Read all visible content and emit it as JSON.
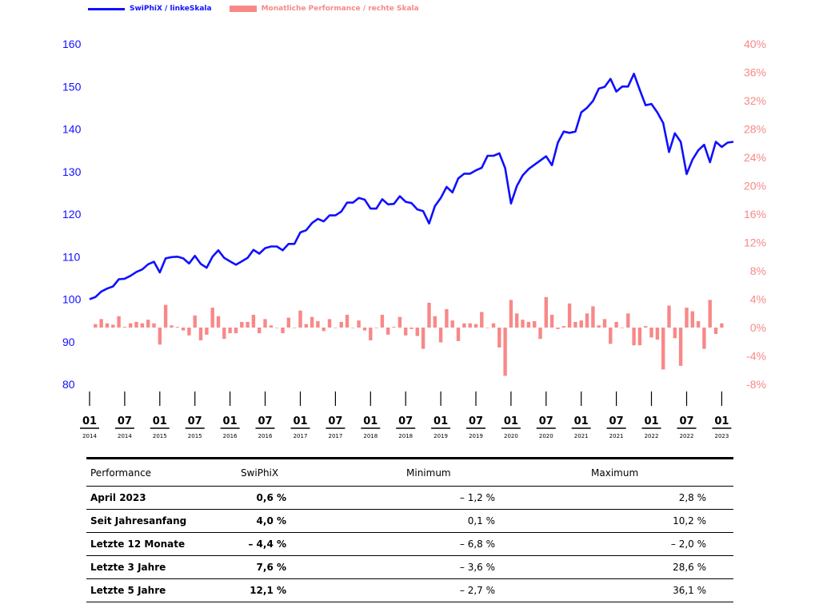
{
  "chart_data": {
    "type": "line+bar",
    "legend": [
      {
        "name": "SwiPhiX / linkeSkala",
        "color": "#1010ff"
      },
      {
        "name": "Monatliche Performance / rechte Skala",
        "color": "#f88888"
      }
    ],
    "left_axis": {
      "ticks": [
        80,
        90,
        100,
        110,
        120,
        130,
        140,
        150,
        160
      ],
      "ylim": [
        80,
        160
      ]
    },
    "right_axis": {
      "ticks": [
        "-8%",
        "-4%",
        "0%",
        "4%",
        "8%",
        "12%",
        "16%",
        "20%",
        "24%",
        "28%",
        "32%",
        "36%",
        "40%"
      ],
      "ylim": [
        -8,
        40
      ]
    },
    "x_ticks": [
      {
        "m": "01",
        "y": "2014"
      },
      {
        "m": "07",
        "y": "2014"
      },
      {
        "m": "01",
        "y": "2015"
      },
      {
        "m": "07",
        "y": "2015"
      },
      {
        "m": "01",
        "y": "2016"
      },
      {
        "m": "07",
        "y": "2016"
      },
      {
        "m": "01",
        "y": "2017"
      },
      {
        "m": "07",
        "y": "2017"
      },
      {
        "m": "01",
        "y": "2018"
      },
      {
        "m": "07",
        "y": "2018"
      },
      {
        "m": "01",
        "y": "2019"
      },
      {
        "m": "07",
        "y": "2019"
      },
      {
        "m": "01",
        "y": "2020"
      },
      {
        "m": "07",
        "y": "2020"
      },
      {
        "m": "01",
        "y": "2021"
      },
      {
        "m": "07",
        "y": "2021"
      },
      {
        "m": "01",
        "y": "2022"
      },
      {
        "m": "07",
        "y": "2022"
      },
      {
        "m": "01",
        "y": "2023"
      }
    ],
    "series": [
      {
        "name": "SwiPhiX / linkeSkala",
        "axis": "left",
        "values": [
          100.0,
          100.5,
          101.8,
          102.5,
          103.0,
          104.7,
          104.8,
          105.5,
          106.4,
          107.0,
          108.2,
          108.8,
          106.3,
          109.6,
          109.9,
          110.0,
          109.6,
          108.4,
          110.2,
          108.3,
          107.4,
          110.0,
          111.5,
          109.7,
          108.9,
          108.1,
          108.9,
          109.7,
          111.6,
          110.7,
          112.0,
          112.4,
          112.4,
          111.5,
          113.0,
          113.0,
          115.7,
          116.2,
          117.9,
          118.9,
          118.3,
          119.7,
          119.7,
          120.6,
          122.7,
          122.7,
          123.8,
          123.4,
          121.3,
          121.3,
          123.5,
          122.3,
          122.4,
          124.2,
          122.9,
          122.6,
          121.1,
          120.7,
          117.8,
          121.9,
          123.8,
          126.4,
          125.1,
          128.4,
          129.5,
          129.5,
          130.3,
          130.9,
          133.7,
          133.7,
          134.3,
          130.8,
          122.5,
          126.6,
          129.1,
          130.6,
          131.6,
          132.6,
          133.6,
          131.5,
          136.8,
          139.4,
          139.1,
          139.4,
          143.9,
          145.0,
          146.6,
          149.5,
          149.9,
          151.8,
          148.8,
          150.0,
          150.0,
          153.0,
          149.2,
          145.6,
          145.9,
          143.9,
          141.4,
          134.6,
          139.0,
          137.0,
          129.4,
          132.8,
          135.0,
          136.3,
          132.2,
          137.0,
          135.8,
          136.8,
          137.0
        ]
      },
      {
        "name": "Monatliche Performance / rechte Skala",
        "axis": "right",
        "values": [
          0.5,
          1.2,
          0.6,
          0.4,
          1.6,
          0.1,
          0.6,
          0.8,
          0.6,
          1.1,
          0.6,
          -2.4,
          3.2,
          0.3,
          0.1,
          -0.4,
          -1.1,
          1.7,
          -1.8,
          -1.0,
          2.8,
          1.6,
          -1.6,
          -0.8,
          -0.8,
          0.8,
          0.8,
          1.8,
          -0.8,
          1.2,
          0.3,
          0.0,
          -0.8,
          1.4,
          0.0,
          2.4,
          0.5,
          1.5,
          0.9,
          -0.5,
          1.2,
          0.0,
          0.8,
          1.8,
          0.0,
          1.0,
          -0.4,
          -1.8,
          0.0,
          1.8,
          -1.0,
          0.1,
          1.5,
          -1.1,
          -0.2,
          -1.2,
          -3.0,
          3.5,
          1.6,
          -2.1,
          2.6,
          1.0,
          -1.9,
          0.6,
          0.6,
          0.5,
          2.2,
          0.0,
          0.6,
          -2.8,
          -6.8,
          3.9,
          2.0,
          1.1,
          0.8,
          0.9,
          -1.6,
          4.3,
          1.8,
          -0.2,
          0.2,
          3.4,
          0.8,
          1.0,
          2.0,
          3.0,
          0.3,
          1.2,
          -2.3,
          0.8,
          0.0,
          2.0,
          -2.5,
          -2.5,
          0.2,
          -1.4,
          -1.7,
          -5.9,
          3.1,
          -1.5,
          -5.4,
          2.8,
          2.3,
          0.9,
          -3.0,
          3.9,
          -0.9,
          0.6
        ]
      }
    ]
  },
  "table": {
    "headers": [
      "Performance",
      "SwiPhiX",
      "Minimum",
      "Maximum"
    ],
    "rows": [
      [
        "April 2023",
        "0,6 %",
        "– 1,2 %",
        "2,8 %"
      ],
      [
        "Seit Jahresanfang",
        "4,0 %",
        "0,1 %",
        "10,2 %"
      ],
      [
        "Letzte 12 Monate",
        "– 4,4 %",
        "– 6,8  %",
        "– 2,0 %"
      ],
      [
        "Letzte 3 Jahre",
        "7,6 %",
        "– 3,6 %",
        "28,6 %"
      ],
      [
        "Letzte 5 Jahre",
        "12,1 %",
        "– 2,7 %",
        "36,1 %"
      ]
    ]
  }
}
